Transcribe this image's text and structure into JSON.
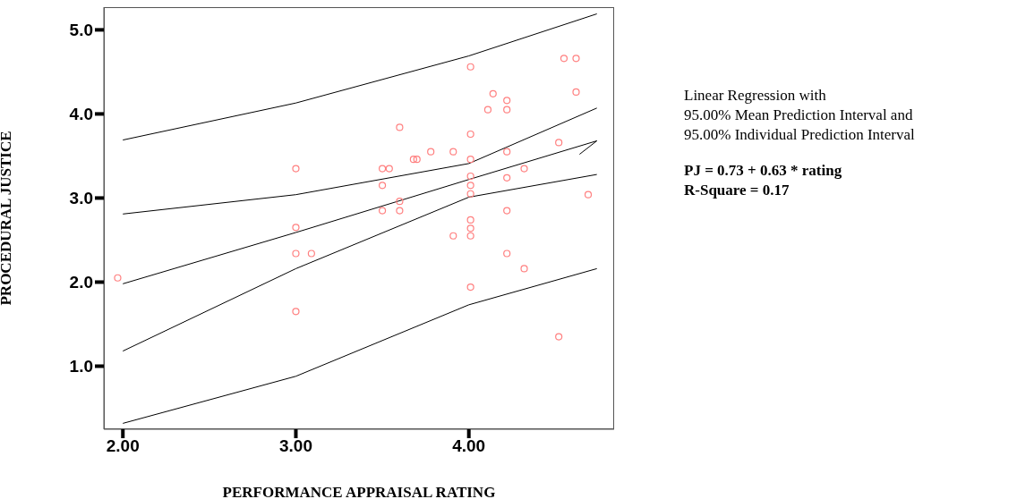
{
  "chart_data": {
    "type": "scatter",
    "xlabel": "PERFORMANCE APPRAISAL RATING",
    "ylabel": "PROCEDURAL JUSTICE",
    "annotations": [
      "Linear Regression with",
      "95.00% Mean Prediction Interval and",
      "95.00% Individual Prediction Interval",
      "PJ = 0.73 + 0.63 * rating",
      "R-Square = 0.17"
    ],
    "xlim": [
      1.89,
      4.84
    ],
    "ylim": [
      0.25,
      5.27
    ],
    "xticks": [
      {
        "value": 2,
        "label": "2.00"
      },
      {
        "value": 3,
        "label": "3.00"
      },
      {
        "value": 4,
        "label": "4.00"
      }
    ],
    "yticks": [
      {
        "value": 1,
        "label": "1.0"
      },
      {
        "value": 2,
        "label": "2.0"
      },
      {
        "value": 3,
        "label": "3.0"
      },
      {
        "value": 4,
        "label": "4.0"
      },
      {
        "value": 5,
        "label": "5.0"
      }
    ],
    "series": [
      {
        "marker": "circle",
        "color": "#ff8080",
        "x": [
          1.97,
          3.0,
          3.0,
          3.0,
          3.09,
          3.0,
          4.01,
          4.55,
          4.62,
          4.14,
          4.22,
          4.62,
          4.11,
          4.22,
          3.6,
          4.01,
          4.52,
          3.78,
          3.91,
          4.22,
          3.68,
          3.7,
          4.01,
          3.5,
          3.54,
          4.32,
          4.01,
          4.22,
          3.5,
          4.01,
          4.01,
          4.69,
          3.6,
          3.6,
          3.5,
          4.22,
          4.01,
          4.01,
          4.01,
          3.91,
          4.22,
          4.32,
          4.01,
          4.52
        ],
        "values": [
          2.05,
          3.35,
          2.65,
          2.34,
          2.34,
          1.65,
          4.56,
          4.66,
          4.66,
          4.24,
          4.16,
          4.26,
          4.05,
          4.05,
          3.84,
          3.76,
          3.66,
          3.55,
          3.55,
          3.55,
          3.46,
          3.46,
          3.46,
          3.35,
          3.35,
          3.35,
          3.26,
          3.24,
          3.15,
          3.15,
          3.05,
          3.04,
          2.96,
          2.85,
          2.85,
          2.85,
          2.74,
          2.64,
          2.55,
          2.55,
          2.34,
          2.16,
          1.94,
          1.35
        ]
      },
      {
        "type": "line",
        "marker": "none",
        "color": "#000000",
        "x": [
          2.0,
          3.0,
          4.0,
          4.74
        ],
        "values": [
          3.69,
          4.13,
          4.69,
          5.19
        ]
      },
      {
        "type": "line",
        "marker": "none",
        "color": "#000000",
        "x": [
          2.0,
          3.0,
          4.0,
          4.74
        ],
        "values": [
          2.81,
          3.04,
          3.41,
          4.07
        ]
      },
      {
        "type": "line",
        "marker": "none",
        "color": "#000000",
        "x": [
          2.0,
          3.0,
          4.0,
          4.74,
          4.64
        ],
        "values": [
          1.98,
          2.59,
          3.22,
          3.68,
          3.52
        ]
      },
      {
        "type": "line",
        "marker": "none",
        "color": "#000000",
        "x": [
          2.0,
          3.0,
          4.0,
          4.74
        ],
        "values": [
          1.18,
          2.16,
          3.01,
          3.28
        ]
      },
      {
        "type": "line",
        "marker": "none",
        "color": "#000000",
        "x": [
          2.0,
          3.0,
          4.0,
          4.74
        ],
        "values": [
          0.32,
          0.88,
          1.73,
          2.16
        ]
      }
    ]
  }
}
